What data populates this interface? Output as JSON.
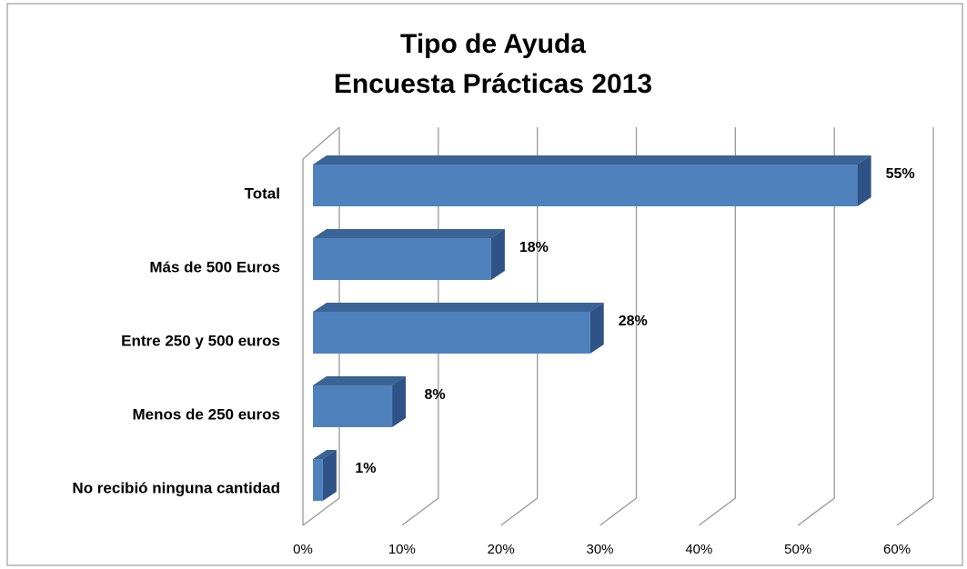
{
  "chart_data": {
    "type": "bar3d_horizontal",
    "title": "Tipo de Ayuda",
    "subtitle": "Encuesta Prácticas 2013",
    "categories": [
      "Total",
      "Más de 500 Euros",
      "Entre 250 y 500 euros",
      "Menos de 250 euros",
      "No recibió ninguna cantidad"
    ],
    "values": [
      55,
      18,
      28,
      8,
      1
    ],
    "value_labels": [
      "55%",
      "18%",
      "28%",
      "8%",
      "1%"
    ],
    "color": "#4f81bd",
    "xlim": [
      0,
      60
    ],
    "xticks": [
      {
        "value": 0,
        "label": "0%"
      },
      {
        "value": 10,
        "label": "10%"
      },
      {
        "value": 20,
        "label": "20%"
      },
      {
        "value": 30,
        "label": "30%"
      },
      {
        "value": 40,
        "label": "40%"
      },
      {
        "value": 50,
        "label": "50%"
      },
      {
        "value": 60,
        "label": "60%"
      }
    ],
    "grid": true
  }
}
